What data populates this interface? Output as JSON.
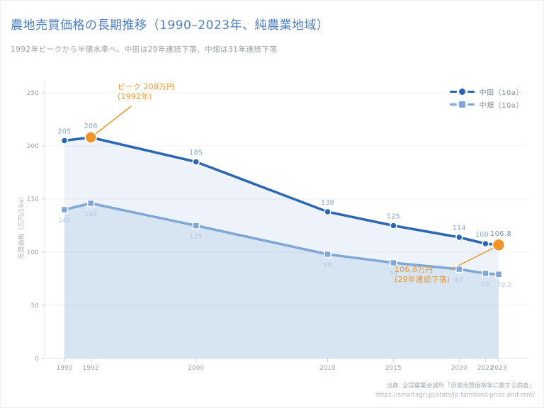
{
  "header": {
    "title": "農地売買価格の長期推移（1990–2023年、純農業地域）",
    "subtitle": "1992年ピークから半値水準へ。中田は29年連続下落、中畑は31年連続下落"
  },
  "chart_data": {
    "type": "line",
    "x": [
      1990,
      1992,
      2000,
      2010,
      2015,
      2020,
      2022,
      2023
    ],
    "series": [
      {
        "name": "中田（10a）",
        "values": [
          205,
          208,
          185,
          138,
          125,
          114,
          108,
          106.8
        ],
        "color": "#2b66b2",
        "marker": "circle"
      },
      {
        "name": "中畑（10a）",
        "values": [
          140,
          146,
          125,
          98,
          90,
          84,
          80,
          79.2
        ],
        "color": "#7fa8d8",
        "marker": "square"
      }
    ],
    "ylabel": "売買価格（万円/10a）",
    "ylim": [
      0,
      250
    ],
    "yticks": [
      0,
      50,
      100,
      150,
      200,
      250
    ],
    "grid": true,
    "legend_position": "top-right",
    "highlight_color": "#f0932b",
    "highlight_points": [
      {
        "series": 0,
        "x": 1992
      },
      {
        "series": 0,
        "x": 2023
      }
    ],
    "annotations": [
      {
        "line1": "ピーク 208万円",
        "line2": "(1992年)",
        "color": "#f0932b"
      },
      {
        "line1": "106.8万円",
        "line2": "(29年連続下落)",
        "color": "#f0932b"
      }
    ]
  },
  "footer": {
    "source": "出典: 全国農業会議所「田畑売買価格等に関する調査」",
    "url": "https://smartagri.jp/stats/jp-farmland-price-and-rent/"
  },
  "colors": {
    "title": "#4d7ebf",
    "subtitle": "#9aa0a6",
    "axis_text": "#98a1ab",
    "grid": "#eef0f3",
    "axis_line": "#dfe3e8",
    "tick": "#c9cfd6",
    "value_label_primary": "#8aa5cf",
    "value_label_latest": "#7290c1",
    "value_label_secondary": "#b3c9e6",
    "annotation": "#f0932b"
  }
}
